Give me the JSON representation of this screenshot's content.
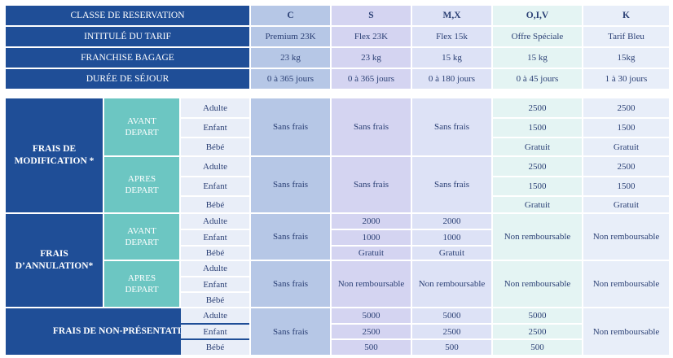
{
  "header": {
    "row_labels": {
      "classe": "CLASSE DE RESERVATION",
      "intitule": "INTITULÉ DU TARIF",
      "franchise": "FRANCHISE BAGAGE",
      "duree": "DURÉE DE SÉJOUR"
    },
    "classes": [
      "C",
      "S",
      "M,X",
      "O,I,V",
      "K"
    ],
    "tarifs": [
      "Premium 23K",
      "Flex 23K",
      "Flex 15k",
      "Offre Spéciale",
      "Tarif Bleu"
    ],
    "bagages": [
      "23 kg",
      "23 kg",
      "15 kg",
      "15 kg",
      "15kg"
    ],
    "durees": [
      "0 à 365 jours",
      "0 à 365 jours",
      "0 à 180 jours",
      "0 à 45 jours",
      "1 à 30 jours"
    ]
  },
  "sections": {
    "modification": "FRAIS DE MODIFICATION *",
    "annulation": "FRAIS D’ANNULATION*",
    "nonpresentation": "FRAIS DE NON-PRÉSENTATION *"
  },
  "timing": {
    "avant": "AVANT DEPART",
    "apres": "APRES DEPART"
  },
  "passengers": {
    "adulte": "Adulte",
    "enfant": "Enfant",
    "bebe": "Bébé"
  },
  "values": {
    "sans_frais": "Sans frais",
    "non_remboursable": "Non remboursable",
    "gratuit": "Gratuit",
    "v2500": "2500",
    "v1500": "1500",
    "v2000": "2000",
    "v1000": "1000",
    "v5000": "5000",
    "v500": "500"
  }
}
